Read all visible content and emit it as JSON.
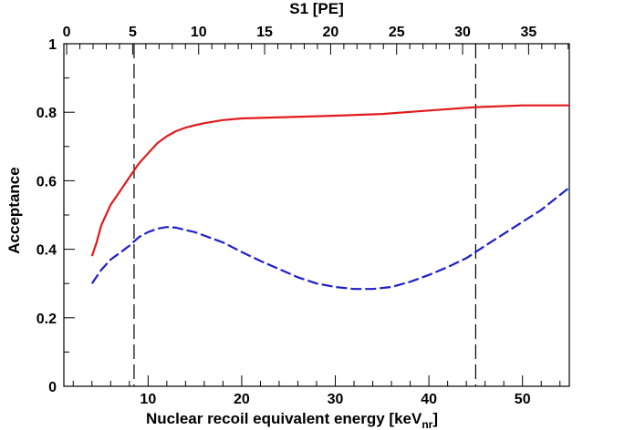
{
  "chart_data": {
    "type": "line",
    "xlabel": "Nuclear recoil equivalent energy [keV",
    "xlabel_subscript": "nr",
    "xlabel_suffix": "]",
    "ylabel": "Acceptance",
    "top_xlabel": "S1 [PE]",
    "xlim": [
      1,
      55
    ],
    "ylim": [
      0,
      1
    ],
    "x_ticks": [
      10,
      20,
      30,
      40,
      50
    ],
    "y_ticks": [
      0,
      0.2,
      0.4,
      0.6,
      0.8,
      1
    ],
    "y_tick_labels": [
      "0",
      "0.2",
      "0.4",
      "0.6",
      "0.8",
      "1"
    ],
    "top_axis": {
      "ticks": [
        0,
        5,
        10,
        15,
        20,
        25,
        30,
        35
      ],
      "s1_to_energy": [
        [
          0,
          1.3
        ],
        [
          5,
          8.35
        ],
        [
          10,
          15.4
        ],
        [
          15,
          22.45
        ],
        [
          20,
          29.5
        ],
        [
          25,
          36.55
        ],
        [
          30,
          43.6
        ],
        [
          35,
          50.65
        ]
      ]
    },
    "vertical_lines": [
      8.5,
      45
    ],
    "grid": false,
    "series": [
      {
        "color": "#e31a1c",
        "style": "solid",
        "x": [
          4,
          4.5,
          5,
          5.5,
          6,
          7,
          8,
          9,
          10,
          11,
          12,
          13,
          14,
          15,
          16,
          18,
          20,
          25,
          30,
          35,
          40,
          45,
          50,
          55
        ],
        "y": [
          0.38,
          0.42,
          0.47,
          0.5,
          0.53,
          0.57,
          0.61,
          0.65,
          0.68,
          0.71,
          0.73,
          0.745,
          0.755,
          0.762,
          0.768,
          0.777,
          0.782,
          0.786,
          0.79,
          0.795,
          0.805,
          0.815,
          0.82,
          0.82
        ]
      },
      {
        "color": "#1f1fcc",
        "style": "dashed",
        "x": [
          4,
          5,
          6,
          7,
          8,
          9,
          10,
          11,
          12,
          13,
          14,
          15,
          16,
          18,
          20,
          22,
          24,
          26,
          28,
          30,
          32,
          34,
          36,
          38,
          40,
          42,
          44,
          46,
          48,
          50,
          52,
          55
        ],
        "y": [
          0.3,
          0.34,
          0.37,
          0.39,
          0.41,
          0.435,
          0.45,
          0.46,
          0.465,
          0.463,
          0.456,
          0.45,
          0.44,
          0.42,
          0.392,
          0.366,
          0.342,
          0.318,
          0.3,
          0.29,
          0.284,
          0.284,
          0.29,
          0.305,
          0.325,
          0.348,
          0.374,
          0.41,
          0.445,
          0.48,
          0.515,
          0.58
        ]
      }
    ]
  }
}
